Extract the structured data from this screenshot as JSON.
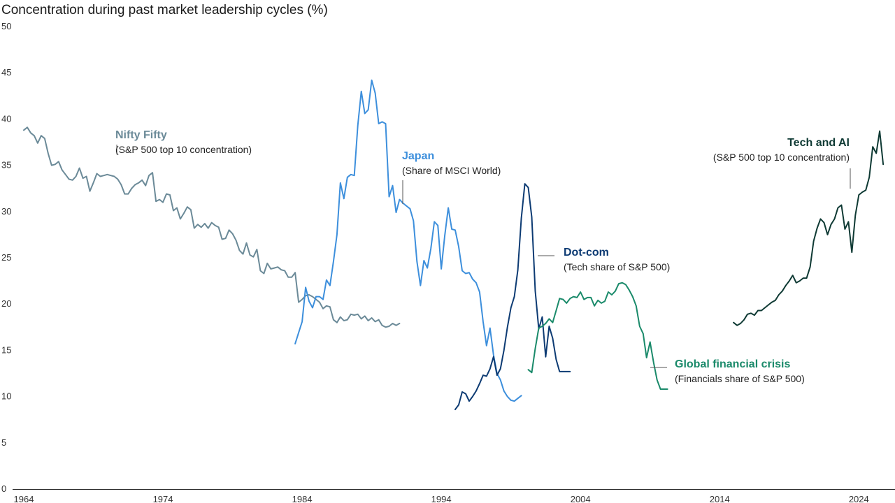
{
  "chart_data": {
    "type": "line",
    "title": "Concentration during past market leadership cycles (%)",
    "xlabel": "",
    "ylabel": "",
    "xlim": [
      1964,
      2027
    ],
    "ylim": [
      0,
      50
    ],
    "x_ticks": [
      "1964",
      "1974",
      "1984",
      "1994",
      "2004",
      "2014",
      "2024"
    ],
    "y_ticks": [
      "0",
      "5",
      "10",
      "15",
      "20",
      "25",
      "30",
      "35",
      "40",
      "45",
      "50"
    ],
    "grid": false,
    "series": [
      {
        "name": "Nifty Fifty",
        "subtitle": "(S&P 500 top 10 concentration)",
        "color": "#6b8a98",
        "x": [
          1964.0,
          1964.25,
          1964.5,
          1964.75,
          1965.0,
          1965.25,
          1965.5,
          1965.75,
          1966.0,
          1966.25,
          1966.5,
          1966.75,
          1967.0,
          1967.25,
          1967.5,
          1967.75,
          1968.0,
          1968.25,
          1968.5,
          1968.75,
          1969.0,
          1969.25,
          1969.5,
          1969.75,
          1970.0,
          1970.25,
          1970.5,
          1970.75,
          1971.0,
          1971.25,
          1971.5,
          1971.75,
          1972.0,
          1972.25,
          1972.5,
          1972.75,
          1973.0,
          1973.25,
          1973.5,
          1973.75,
          1974.0,
          1974.25,
          1974.5,
          1974.75,
          1975.0,
          1975.25,
          1975.5,
          1975.75,
          1976.0,
          1976.25,
          1976.5,
          1976.75,
          1977.0,
          1977.25,
          1977.5,
          1977.75,
          1978.0,
          1978.25,
          1978.5,
          1978.75,
          1979.0,
          1979.25,
          1979.5,
          1979.75,
          1980.0,
          1980.25,
          1980.5,
          1980.75,
          1981.0,
          1981.25,
          1981.5,
          1981.75,
          1982.0,
          1982.25,
          1982.5,
          1982.75,
          1983.0,
          1983.25,
          1983.5,
          1983.75,
          1984.0,
          1984.25,
          1984.5,
          1984.75,
          1985.0,
          1985.25,
          1985.5,
          1985.75,
          1986.0,
          1986.25,
          1986.5,
          1986.75,
          1987.0,
          1987.25,
          1987.5,
          1987.75,
          1988.0,
          1988.25,
          1988.5,
          1988.75,
          1989.0,
          1989.25,
          1989.5,
          1989.75,
          1990.0,
          1990.25,
          1990.5,
          1990.75,
          1991.0
        ],
        "y": [
          38.8,
          39.1,
          38.5,
          38.2,
          37.4,
          38.2,
          37.9,
          36.3,
          35.0,
          35.1,
          35.4,
          34.5,
          34.0,
          33.5,
          33.4,
          33.8,
          34.7,
          33.6,
          33.8,
          32.2,
          33.1,
          34.1,
          33.8,
          33.9,
          34.0,
          33.9,
          33.8,
          33.5,
          32.9,
          31.9,
          31.9,
          32.5,
          32.9,
          33.1,
          33.4,
          32.8,
          33.9,
          34.2,
          31.1,
          31.3,
          31.0,
          31.9,
          31.8,
          30.1,
          30.4,
          29.2,
          29.8,
          30.5,
          30.2,
          28.2,
          28.6,
          28.3,
          28.7,
          28.2,
          28.8,
          28.5,
          28.3,
          27.0,
          27.1,
          28.0,
          27.6,
          26.9,
          25.8,
          25.4,
          26.6,
          25.3,
          25.1,
          25.9,
          23.6,
          23.3,
          24.4,
          23.8,
          23.9,
          24.0,
          23.7,
          23.6,
          22.9,
          22.9,
          23.4,
          20.2,
          20.5,
          20.9,
          21.0,
          20.8,
          20.5,
          20.2,
          19.5,
          19.8,
          19.7,
          18.3,
          18.0,
          18.6,
          18.2,
          18.3,
          18.9,
          18.8,
          18.9,
          18.4,
          18.7,
          18.2,
          18.5,
          18.1,
          18.3,
          17.7,
          17.5,
          17.6,
          17.9,
          17.7,
          17.9
        ]
      },
      {
        "name": "Japan",
        "subtitle": "(Share of MSCI World)",
        "color": "#3d8fdc",
        "x": [
          1983.5,
          1983.75,
          1984.0,
          1984.25,
          1984.5,
          1984.75,
          1985.0,
          1985.25,
          1985.5,
          1985.75,
          1986.0,
          1986.25,
          1986.5,
          1986.75,
          1987.0,
          1987.25,
          1987.5,
          1987.75,
          1988.0,
          1988.25,
          1988.5,
          1988.75,
          1989.0,
          1989.25,
          1989.5,
          1989.75,
          1990.0,
          1990.25,
          1990.5,
          1990.75,
          1991.0,
          1991.25,
          1991.5,
          1991.75,
          1992.0,
          1992.25,
          1992.5,
          1992.75,
          1993.0,
          1993.25,
          1993.5,
          1993.75,
          1994.0,
          1994.25,
          1994.5,
          1994.75,
          1995.0,
          1995.25,
          1995.5,
          1995.75,
          1996.0,
          1996.25,
          1996.5,
          1996.75,
          1997.0,
          1997.25,
          1997.5,
          1997.75,
          1998.0,
          1998.25,
          1998.5,
          1998.75,
          1999.0,
          1999.25,
          1999.5,
          1999.75
        ],
        "y": [
          15.7,
          16.9,
          18.1,
          21.8,
          20.3,
          19.6,
          20.8,
          20.8,
          20.5,
          22.6,
          22.0,
          24.6,
          27.5,
          33.1,
          31.4,
          33.7,
          34.0,
          33.9,
          39.3,
          43.0,
          40.6,
          41.0,
          44.2,
          42.8,
          39.5,
          39.7,
          39.5,
          31.6,
          32.8,
          29.9,
          31.3,
          30.9,
          30.6,
          30.3,
          29.0,
          24.6,
          22.0,
          24.7,
          23.9,
          26.0,
          28.9,
          28.5,
          23.8,
          27.4,
          30.4,
          28.1,
          28.0,
          26.2,
          23.6,
          23.3,
          23.4,
          22.7,
          22.3,
          21.3,
          18.1,
          15.5,
          17.4,
          14.5,
          12.5,
          11.8,
          10.6,
          10.0,
          9.6,
          9.5,
          9.8,
          10.1
        ]
      },
      {
        "name": "Dot-com",
        "subtitle": "(Tech share of S&P 500)",
        "color": "#0d3b73",
        "x": [
          1995.0,
          1995.25,
          1995.5,
          1995.75,
          1996.0,
          1996.25,
          1996.5,
          1996.75,
          1997.0,
          1997.25,
          1997.5,
          1997.75,
          1998.0,
          1998.25,
          1998.5,
          1998.75,
          1999.0,
          1999.25,
          1999.5,
          1999.75,
          2000.0,
          2000.25,
          2000.5,
          2000.75,
          2001.0,
          2001.25,
          2001.5,
          2001.75,
          2002.0,
          2002.25,
          2002.5,
          2002.75,
          2003.0,
          2003.25
        ],
        "y": [
          8.6,
          9.1,
          10.5,
          10.3,
          9.5,
          10.0,
          10.6,
          11.4,
          12.3,
          12.2,
          13.0,
          14.3,
          12.3,
          13.0,
          15.0,
          17.5,
          19.6,
          20.8,
          23.7,
          29.3,
          33.0,
          32.6,
          29.4,
          21.4,
          17.3,
          18.6,
          14.3,
          17.6,
          16.3,
          14.0,
          12.7,
          12.7,
          12.7,
          12.7
        ]
      },
      {
        "name": "Global financial crisis",
        "subtitle": "(Financials share of S&P 500)",
        "color": "#1a8a6a",
        "x": [
          2000.25,
          2000.5,
          2000.75,
          2001.0,
          2001.25,
          2001.5,
          2001.75,
          2002.0,
          2002.25,
          2002.5,
          2002.75,
          2003.0,
          2003.25,
          2003.5,
          2003.75,
          2004.0,
          2004.25,
          2004.5,
          2004.75,
          2005.0,
          2005.25,
          2005.5,
          2005.75,
          2006.0,
          2006.25,
          2006.5,
          2006.75,
          2007.0,
          2007.25,
          2007.5,
          2007.75,
          2008.0,
          2008.25,
          2008.5,
          2008.75,
          2009.0,
          2009.25,
          2009.5,
          2009.75,
          2010.0,
          2010.25
        ],
        "y": [
          12.9,
          12.6,
          15.2,
          17.4,
          17.6,
          17.9,
          18.4,
          18.0,
          19.3,
          20.6,
          20.5,
          20.1,
          20.6,
          20.8,
          20.7,
          21.3,
          20.5,
          20.7,
          20.7,
          19.8,
          20.4,
          20.1,
          20.3,
          21.3,
          21.0,
          21.4,
          22.2,
          22.3,
          22.1,
          21.5,
          20.8,
          19.8,
          17.6,
          16.8,
          14.2,
          15.9,
          13.7,
          11.8,
          10.8,
          10.8,
          10.8
        ]
      },
      {
        "name": "Tech and AI",
        "subtitle": "(S&P 500 top 10 concentration)",
        "color": "#0f3a34",
        "x": [
          2015.0,
          2015.25,
          2015.5,
          2015.75,
          2016.0,
          2016.25,
          2016.5,
          2016.75,
          2017.0,
          2017.25,
          2017.5,
          2017.75,
          2018.0,
          2018.25,
          2018.5,
          2018.75,
          2019.0,
          2019.25,
          2019.5,
          2019.75,
          2020.0,
          2020.25,
          2020.5,
          2020.75,
          2021.0,
          2021.25,
          2021.5,
          2021.75,
          2022.0,
          2022.25,
          2022.5,
          2022.75,
          2023.0,
          2023.25,
          2023.5,
          2023.75,
          2024.0,
          2024.25,
          2024.5,
          2024.75,
          2025.0,
          2025.25,
          2025.5,
          2025.75
        ],
        "y": [
          18.0,
          17.7,
          17.9,
          18.3,
          18.9,
          19.0,
          18.8,
          19.3,
          19.3,
          19.6,
          19.9,
          20.2,
          20.4,
          21.0,
          21.4,
          22.0,
          22.5,
          23.1,
          22.3,
          22.5,
          22.8,
          22.8,
          24.0,
          26.8,
          28.2,
          29.2,
          28.8,
          27.5,
          28.6,
          29.2,
          30.4,
          30.7,
          28.1,
          28.9,
          25.6,
          29.6,
          31.8,
          32.1,
          32.3,
          33.7,
          37.0,
          36.3,
          38.7,
          35.1
        ]
      }
    ]
  }
}
